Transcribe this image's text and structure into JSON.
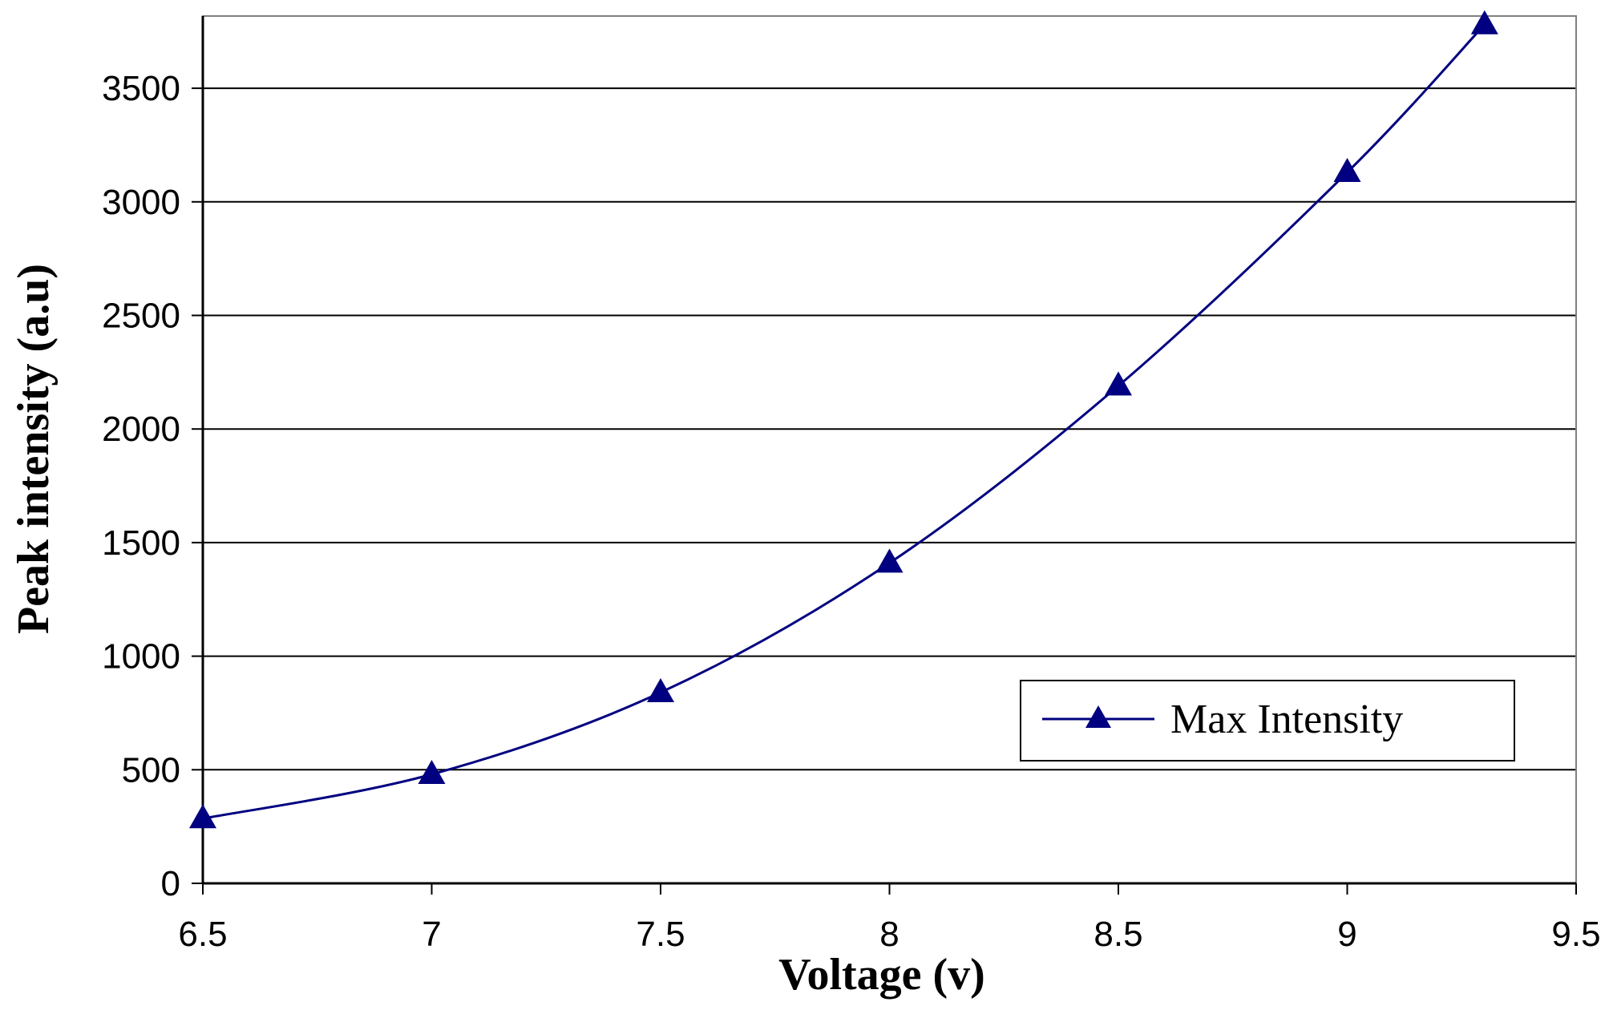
{
  "chart_data": {
    "type": "line",
    "title": "",
    "xlabel": "Voltage (v)",
    "ylabel": "Peak intensity (a.u)",
    "xlim": [
      6.5,
      9.5
    ],
    "ylim": [
      0,
      3500
    ],
    "x_ticks": [
      "6.5",
      "7",
      "7.5",
      "8",
      "8.5",
      "9",
      "9.5"
    ],
    "y_ticks": [
      "0",
      "500",
      "1000",
      "1500",
      "2000",
      "2500",
      "3000",
      "3500"
    ],
    "grid": "horizontal",
    "legend_position": "lower-right",
    "series": [
      {
        "name": "Max Intensity",
        "color": "#000080",
        "marker": "triangle",
        "smooth": true,
        "x": [
          6.5,
          7.0,
          7.5,
          8.0,
          8.5,
          9.0,
          9.3
        ],
        "y": [
          285,
          480,
          840,
          1410,
          2190,
          3130,
          3780
        ]
      }
    ]
  }
}
